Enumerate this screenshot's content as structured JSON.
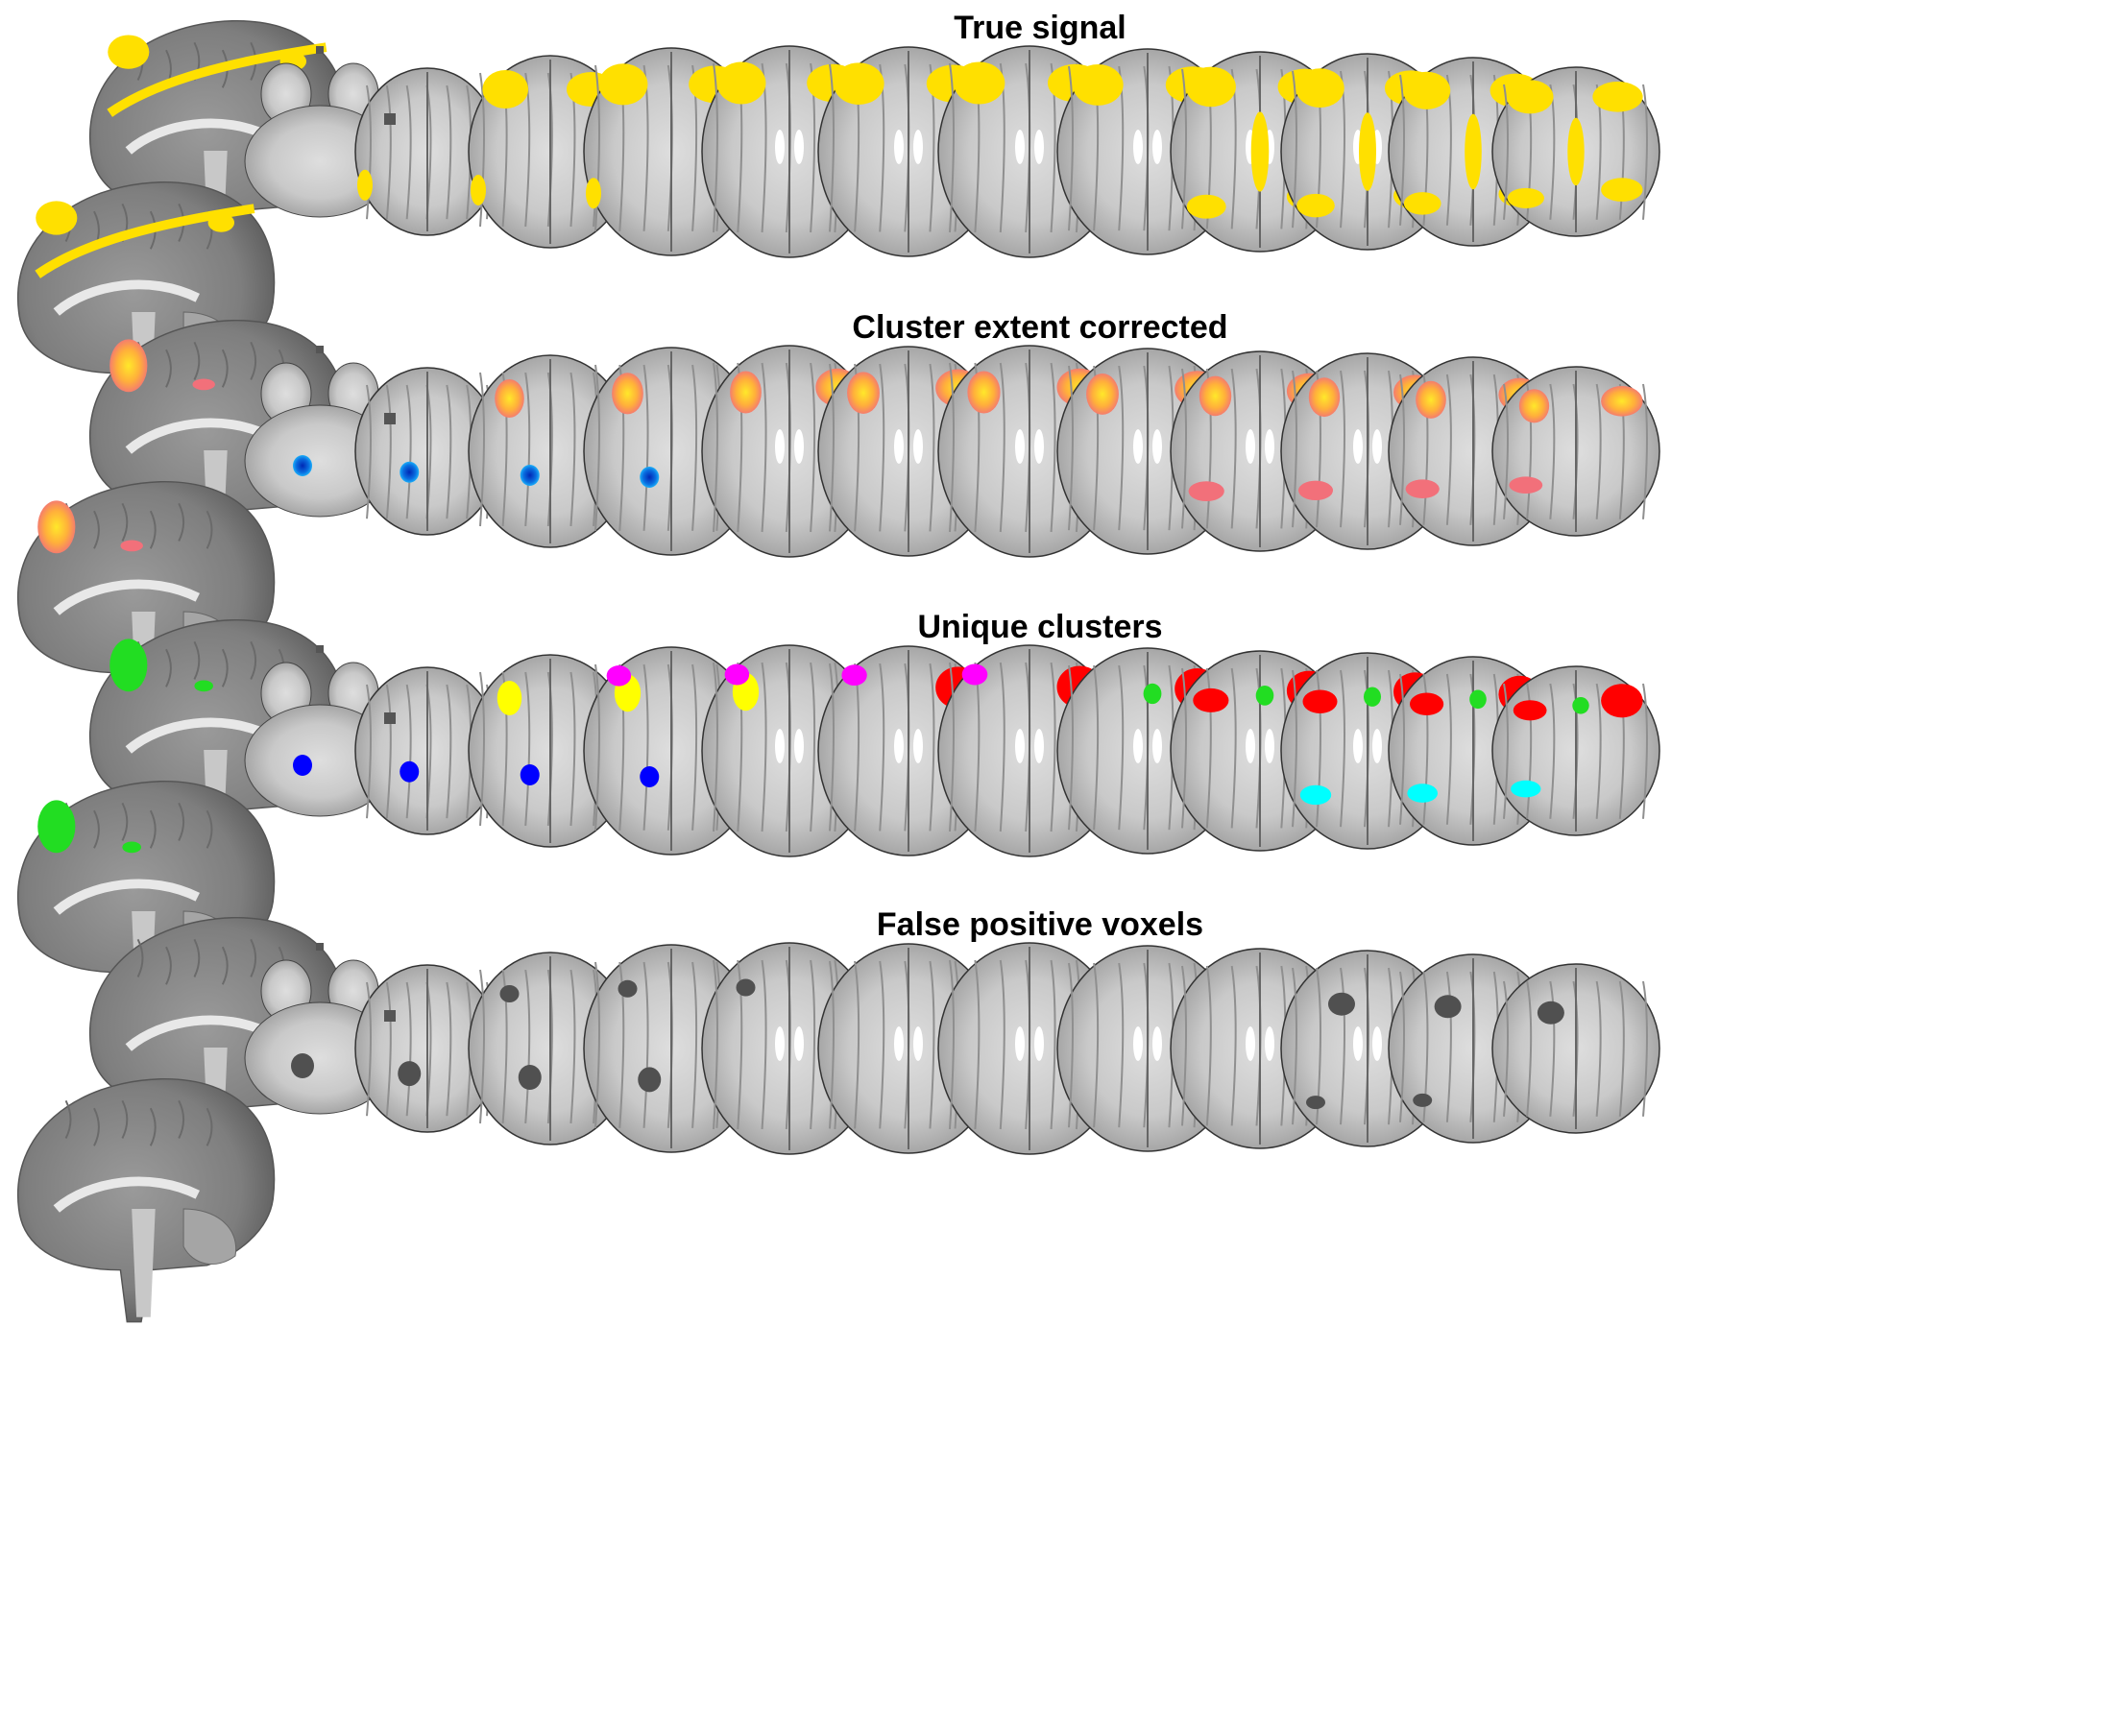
{
  "figure": {
    "panels": [
      {
        "title": "True signal",
        "overlay": "true"
      },
      {
        "title": "Cluster extent corrected",
        "overlay": "corrected"
      },
      {
        "title": "Unique clusters",
        "overlay": "unique"
      },
      {
        "title": "False positive voxels",
        "overlay": "fp"
      }
    ],
    "colors": {
      "true_signal": "#ffe000",
      "positive_low": "#f2707a",
      "positive_high": "#ffd21a",
      "negative_low": "#00b4ff",
      "negative_high": "#003cc8",
      "cluster_red": "#ff0000",
      "cluster_green": "#22dd22",
      "cluster_yellow": "#ffff00",
      "cluster_magenta": "#ff00ff",
      "cluster_blue": "#0000ff",
      "cluster_cyan": "#00ffff",
      "false_positive": "#505050"
    }
  }
}
